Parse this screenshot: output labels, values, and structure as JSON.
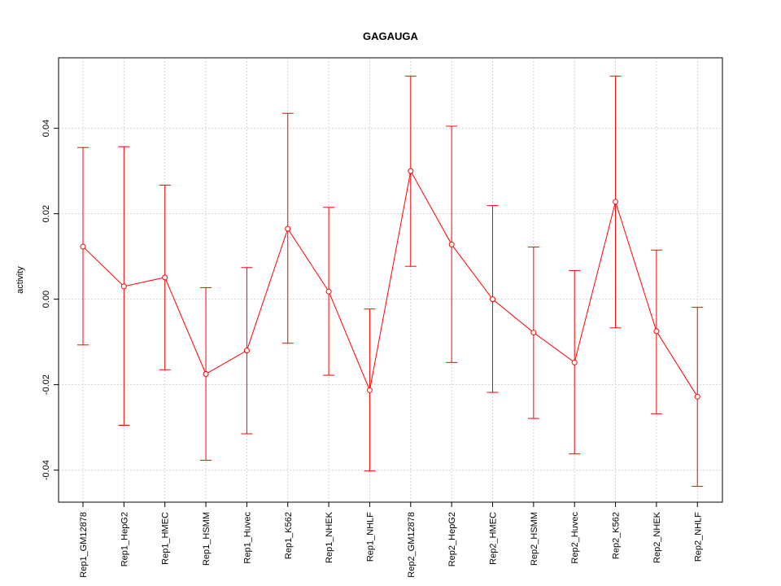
{
  "chart_data": {
    "type": "line",
    "title": "GAGAUGA",
    "xlabel": "",
    "ylabel": "activity",
    "ylim": [
      -0.0475,
      0.0565
    ],
    "yticks": [
      -0.04,
      -0.02,
      0.0,
      0.02,
      0.04
    ],
    "ytick_labels": [
      "-0.04",
      "-0.02",
      "0.00",
      "0.02",
      "0.04"
    ],
    "grid": true,
    "categories": [
      "Rep1_GM12878",
      "Rep1_HepG2",
      "Rep1_HMEC",
      "Rep1_HSMM",
      "Rep1_Huvec",
      "Rep1_K562",
      "Rep1_NHEK",
      "Rep1_NHLF",
      "Rep2_GM12878",
      "Rep2_HepG2",
      "Rep2_HMEC",
      "Rep2_HSMM",
      "Rep2_Huvec",
      "Rep2_K562",
      "Rep2_NHEK",
      "Rep2_NHLF"
    ],
    "values": [
      0.0123,
      0.003,
      0.0051,
      -0.0175,
      -0.012,
      0.0165,
      0.0018,
      -0.0213,
      0.03,
      0.0128,
      0.0,
      -0.0078,
      -0.0148,
      0.0228,
      -0.0075,
      -0.0228
    ],
    "upper": [
      0.0355,
      0.0357,
      0.0267,
      0.0027,
      0.0074,
      0.0435,
      0.0215,
      -0.0023,
      0.0522,
      0.0405,
      0.0219,
      0.0122,
      0.0067,
      0.0522,
      0.0115,
      -0.0019
    ],
    "lower": [
      -0.0107,
      -0.0295,
      -0.0165,
      -0.0377,
      -0.0315,
      -0.0103,
      -0.0178,
      -0.0402,
      0.0077,
      -0.0148,
      -0.0218,
      -0.0279,
      -0.0362,
      -0.0067,
      -0.0268,
      -0.0438
    ],
    "color": "#ff0000",
    "grid_color": "#d3d3d3"
  }
}
